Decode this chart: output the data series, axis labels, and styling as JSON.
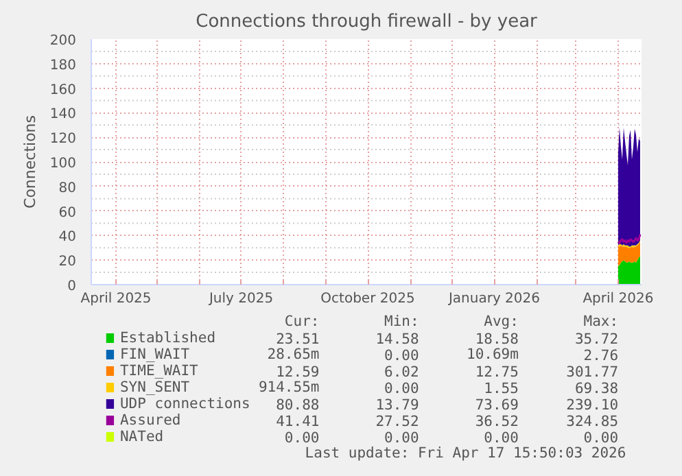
{
  "chart_data": {
    "type": "area",
    "stacked": true,
    "title": "Connections through firewall - by year",
    "ylabel": "Connections",
    "x": [
      "2026-04-01",
      "2026-04-02",
      "2026-04-03",
      "2026-04-04",
      "2026-04-05",
      "2026-04-06",
      "2026-04-07",
      "2026-04-08",
      "2026-04-09",
      "2026-04-10",
      "2026-04-11",
      "2026-04-12",
      "2026-04-13",
      "2026-04-14",
      "2026-04-15",
      "2026-04-16",
      "2026-04-17"
    ],
    "series": [
      {
        "name": "Established",
        "color": "#00cc00",
        "values": [
          15,
          16,
          18,
          19,
          20,
          19,
          18,
          18,
          19,
          18,
          18,
          18,
          19,
          18,
          20,
          22,
          23
        ]
      },
      {
        "name": "FIN_WAIT",
        "color": "#0066b3",
        "values": [
          null,
          null,
          null,
          null,
          null,
          null,
          null,
          null,
          null,
          null,
          null,
          null,
          null,
          null,
          null,
          null,
          null
        ]
      },
      {
        "name": "TIME_WAIT",
        "color": "#ff8000",
        "values": [
          16,
          15,
          14,
          12,
          11,
          12,
          13,
          12,
          11,
          12,
          13,
          12,
          12,
          13,
          12,
          11,
          12
        ]
      },
      {
        "name": "SYN_SENT",
        "color": "#ffcc00",
        "values": [
          1,
          2,
          1,
          1,
          2,
          1,
          1,
          2,
          1,
          1,
          1,
          2,
          1,
          1,
          1,
          1,
          1
        ]
      },
      {
        "name": "UDP connections",
        "color": "#330099",
        "values": [
          75,
          95,
          80,
          70,
          95,
          85,
          75,
          65,
          90,
          95,
          70,
          80,
          95,
          90,
          75,
          85,
          81
        ]
      },
      {
        "name": "Assured",
        "color": "#990099",
        "type": "line",
        "values": [
          35,
          34,
          36,
          37,
          35,
          36,
          34,
          36,
          35,
          37,
          36,
          35,
          36,
          38,
          36,
          37,
          41
        ]
      },
      {
        "name": "NATed",
        "color": "#ccff00",
        "type": "line",
        "values": [
          null,
          null,
          null,
          null,
          null,
          null,
          null,
          null,
          null,
          null,
          null,
          null,
          null,
          null,
          null,
          null,
          null
        ]
      }
    ],
    "xlim": [
      "2025-03-14",
      "2026-04-18"
    ],
    "xticks": [
      {
        "value": "2025-04-01",
        "label": "April 2025"
      },
      {
        "value": "2025-05-01",
        "label": null
      },
      {
        "value": "2025-06-01",
        "label": null
      },
      {
        "value": "2025-07-01",
        "label": "July 2025"
      },
      {
        "value": "2025-08-01",
        "label": null
      },
      {
        "value": "2025-09-01",
        "label": null
      },
      {
        "value": "2025-10-01",
        "label": "October 2025"
      },
      {
        "value": "2025-11-01",
        "label": null
      },
      {
        "value": "2025-12-01",
        "label": null
      },
      {
        "value": "2026-01-01",
        "label": "January 2026"
      },
      {
        "value": "2026-02-01",
        "label": null
      },
      {
        "value": "2026-03-01",
        "label": null
      },
      {
        "value": "2026-04-01",
        "label": "April 2026"
      }
    ],
    "ylim": [
      0,
      200
    ],
    "yticks": [
      0,
      {
        "value": 10,
        "label": null
      },
      20,
      {
        "value": 30,
        "label": null
      },
      40,
      {
        "value": 50,
        "label": null
      },
      60,
      {
        "value": 70,
        "label": null
      },
      80,
      {
        "value": 90,
        "label": null
      },
      100,
      {
        "value": 110,
        "label": null
      },
      120,
      {
        "value": 130,
        "label": null
      },
      140,
      {
        "value": 150,
        "label": null
      },
      160,
      {
        "value": 170,
        "label": null
      },
      180,
      {
        "value": 190,
        "label": null
      },
      200
    ],
    "grid": true,
    "legend": "bottom",
    "annotations": [
      "Cur:",
      "Min:",
      "Avg:",
      "Max:",
      "23.51",
      "14.58",
      "18.58",
      "35.72",
      "28.65m",
      "0.00",
      "10.69m",
      "2.76",
      "12.59",
      "6.02",
      "12.75",
      "301.77",
      "914.55m",
      "0.00",
      "1.55",
      "69.38",
      "80.88",
      "13.79",
      "73.69",
      "239.10",
      "41.41",
      "27.52",
      "36.52",
      "324.85",
      "0.00",
      "0.00",
      "0.00",
      "0.00",
      "Last update: Fri Apr 17 15:50:03 2026"
    ]
  }
}
